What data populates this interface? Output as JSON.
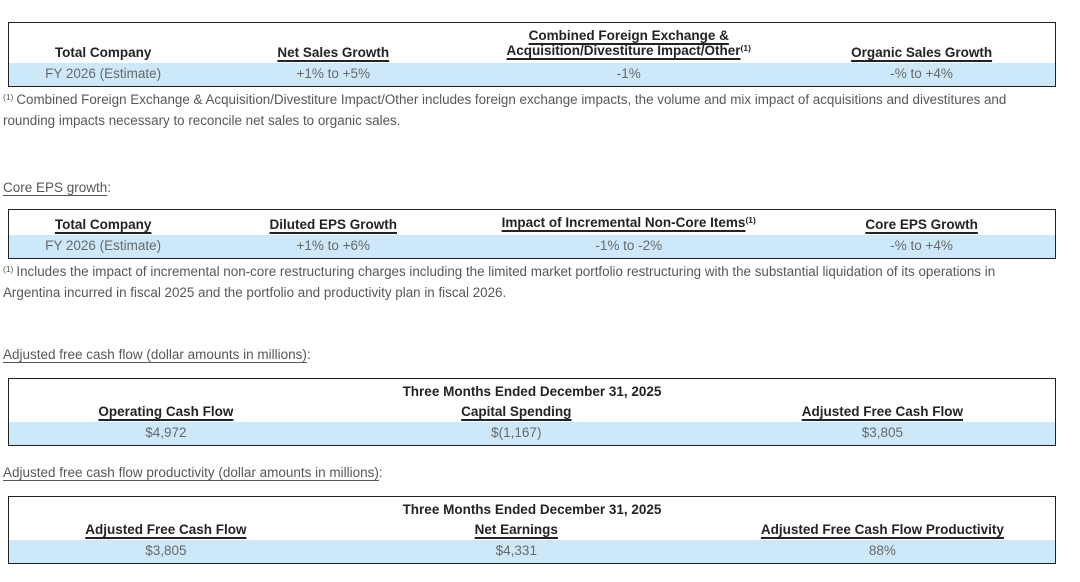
{
  "colors": {
    "highlight_row": "#cde9f9",
    "table_border": "#202022",
    "header_text": "#232325",
    "value_text": "#66686b",
    "body_text": "#56575b"
  },
  "sales_table": {
    "headers": {
      "col1": "Total Company",
      "col2": "Net Sales Growth",
      "col3_line1": "Combined Foreign Exchange &",
      "col3_line2": "Acquisition/Divestiture Impact/Other",
      "col3_sup": "(1)",
      "col4": "Organic Sales Growth"
    },
    "row": {
      "label": "FY 2026 (Estimate)",
      "net_sales_growth": "+1% to +5%",
      "fx_impact": "-1%",
      "organic_sales_growth": "-% to +4%"
    }
  },
  "footnote_fx": {
    "marker": "(1)",
    "text": "Combined Foreign Exchange & Acquisition/Divestiture Impact/Other includes foreign exchange impacts, the volume and mix impact of acquisitions and divestitures and rounding impacts necessary to reconcile net sales to organic sales."
  },
  "eps_section": {
    "heading": "Core EPS growth",
    "colon": ":"
  },
  "eps_table": {
    "headers": {
      "col1": "Total Company",
      "col2": "Diluted EPS Growth",
      "col3": "Impact of Incremental Non-Core Items",
      "col3_sup": "(1)",
      "col4": "Core EPS Growth"
    },
    "row": {
      "label": "FY 2026 (Estimate)",
      "diluted_eps_growth": "+1% to +6%",
      "non_core_impact": "-1% to -2%",
      "core_eps_growth": "-% to +4%"
    }
  },
  "footnote_noncore": {
    "marker": "(1)",
    "text": "Includes the impact of incremental non-core restructuring charges including the limited market portfolio restructuring with the substantial liquidation of its operations in Argentina incurred in fiscal 2025 and the portfolio and productivity plan in fiscal 2026."
  },
  "fcf_section": {
    "heading": "Adjusted free cash flow (dollar amounts in millions)",
    "colon": ":"
  },
  "fcf_table": {
    "period_header": "Three Months Ended December 31, 2025",
    "headers": {
      "col1": "Operating Cash Flow",
      "col2": "Capital Spending",
      "col3": "Adjusted Free Cash Flow"
    },
    "row": {
      "operating_cash_flow": "$4,972",
      "capital_spending": "$(1,167)",
      "adjusted_free_cash_flow": "$3,805"
    }
  },
  "fcf_productivity_section": {
    "heading": "Adjusted free cash flow productivity (dollar amounts in millions)",
    "colon": ":"
  },
  "fcf_productivity_table": {
    "period_header": "Three Months Ended December 31, 2025",
    "headers": {
      "col1": "Adjusted Free Cash Flow",
      "col2": "Net Earnings",
      "col3": "Adjusted Free Cash Flow Productivity"
    },
    "row": {
      "adjusted_free_cash_flow": "$3,805",
      "net_earnings": "$4,331",
      "productivity": "88%"
    }
  }
}
